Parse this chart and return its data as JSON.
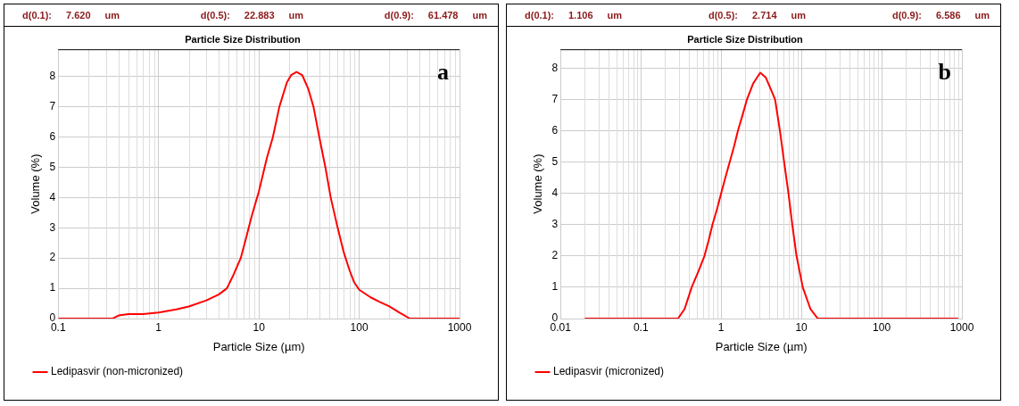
{
  "chart_data": [
    {
      "type": "line",
      "title": "Particle Size Distribution",
      "xlabel": "Particle Size (µm)",
      "ylabel": "Volume (%)",
      "log": "x",
      "grid": true,
      "legend": "bottom",
      "marker": "none",
      "line_style": "solid",
      "annotations": [
        "d(0.1): 7.620 um",
        "d(0.5): 22.883 um",
        "d(0.9): 61.478 um",
        "a"
      ],
      "xlim": [
        0.1,
        1000
      ],
      "xticks": [
        0.1,
        1,
        10,
        100,
        1000
      ],
      "ylim": [
        0,
        8.9
      ],
      "yticks": [
        0,
        1,
        2,
        3,
        4,
        5,
        6,
        7,
        8
      ],
      "series": [
        {
          "name": "Ledipasvir (non-micronized)",
          "color": "#ff0000",
          "x": [
            0.1,
            0.35,
            0.4,
            0.5,
            0.7,
            1,
            1.5,
            2,
            3,
            4,
            4.8,
            5.5,
            6.6,
            7.5,
            8.5,
            10,
            12,
            13.8,
            16,
            19,
            21,
            23.7,
            27,
            31,
            35,
            40,
            46,
            52,
            60,
            70,
            80,
            89,
            100,
            130,
            160,
            200,
            250,
            320,
            500,
            1000
          ],
          "values": [
            0,
            0,
            0.1,
            0.15,
            0.15,
            0.2,
            0.3,
            0.4,
            0.6,
            0.8,
            1,
            1.4,
            2,
            2.7,
            3.4,
            4.2,
            5.3,
            6,
            7,
            7.8,
            8.05,
            8.15,
            8.05,
            7.6,
            7,
            6,
            5,
            4,
            3.1,
            2.2,
            1.6,
            1.2,
            0.95,
            0.7,
            0.55,
            0.4,
            0.2,
            0,
            0,
            0
          ]
        }
      ]
    },
    {
      "type": "line",
      "title": "Particle Size Distribution",
      "xlabel": "Particle Size (µm)",
      "ylabel": "Volume (%)",
      "log": "x",
      "grid": true,
      "legend": "bottom",
      "marker": "none",
      "line_style": "solid",
      "annotations": [
        "d(0.1): 1.106 um",
        "d(0.5): 2.714 um",
        "d(0.9): 6.586 um",
        "b"
      ],
      "xlim": [
        0.01,
        1000
      ],
      "xticks": [
        0.01,
        0.1,
        1,
        10,
        100,
        1000
      ],
      "ylim": [
        0,
        8.6
      ],
      "yticks": [
        0,
        1,
        2,
        3,
        4,
        5,
        6,
        7,
        8
      ],
      "series": [
        {
          "name": "Ledipasvir (micronized)",
          "color": "#ff0000",
          "x": [
            0.02,
            0.1,
            0.29,
            0.35,
            0.43,
            0.52,
            0.62,
            0.7,
            0.78,
            0.89,
            1,
            1.13,
            1.28,
            1.45,
            1.62,
            1.85,
            2.1,
            2.5,
            3.07,
            3.6,
            4.2,
            4.7,
            5.4,
            6.1,
            6.9,
            7.7,
            8.7,
            10.4,
            13,
            16,
            100,
            900
          ],
          "values": [
            0,
            0,
            0,
            0.3,
            1,
            1.5,
            2,
            2.5,
            3,
            3.5,
            4,
            4.5,
            5,
            5.5,
            6,
            6.5,
            7,
            7.5,
            7.85,
            7.7,
            7.3,
            7,
            6,
            5,
            4,
            3,
            2,
            1,
            0.3,
            0,
            0,
            0
          ]
        }
      ]
    }
  ]
}
